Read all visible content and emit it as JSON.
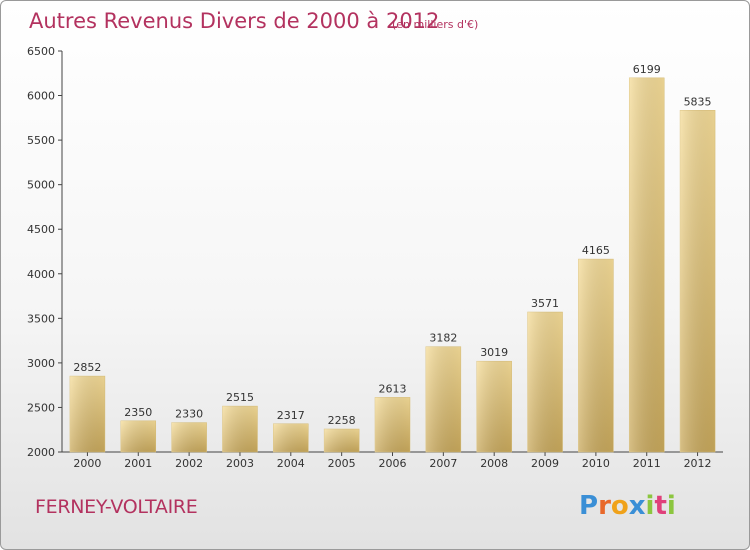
{
  "header": {
    "title": "Autres Revenus Divers de 2000 à 2012",
    "subtitle": "(en milliers d'€)"
  },
  "footer": {
    "city": "FERNEY-VOLTAIRE",
    "logo": [
      "P",
      "r",
      "o",
      "x",
      "i",
      "t",
      "i"
    ]
  },
  "chart_data": {
    "type": "bar",
    "title": "Autres Revenus Divers de 2000 à 2012",
    "subtitle": "(en milliers d'€)",
    "categories": [
      "2000",
      "2001",
      "2002",
      "2003",
      "2004",
      "2005",
      "2006",
      "2007",
      "2008",
      "2009",
      "2010",
      "2011",
      "2012"
    ],
    "values": [
      2852,
      2350,
      2330,
      2515,
      2317,
      2258,
      2613,
      3182,
      3019,
      3571,
      4165,
      6199,
      5835
    ],
    "ylim": [
      2000,
      6500
    ],
    "yticks": [
      2000,
      2500,
      3000,
      3500,
      4000,
      4500,
      5000,
      5500,
      6000,
      6500
    ],
    "grid": false,
    "bar_color": "#e8cf87"
  }
}
